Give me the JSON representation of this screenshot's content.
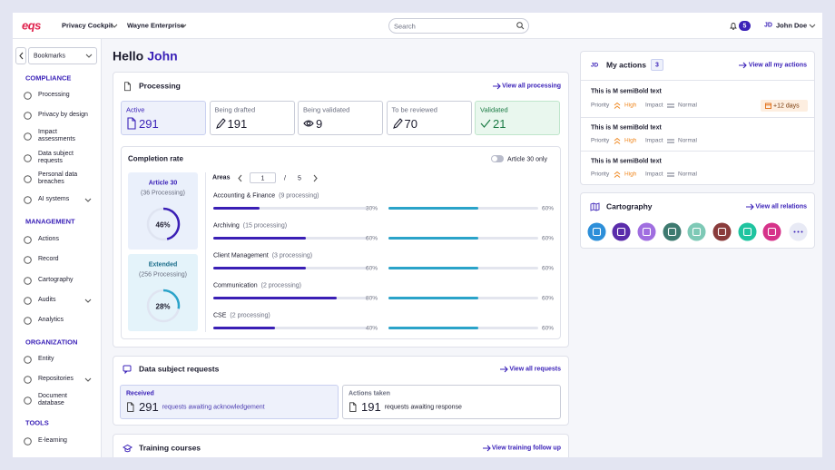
{
  "header": {
    "logo": "eqs",
    "nav": [
      "Privacy Cockpit",
      "Wayne Enterprise"
    ],
    "search": "Search",
    "notifications": 5,
    "user_initials": "JD",
    "user_name": "John Doe"
  },
  "sidebar": {
    "bookmarks": "Bookmarks",
    "sections": [
      {
        "title": "COMPLIANCE",
        "items": [
          "Processing",
          "Privacy by design",
          "Impact assessments",
          "Data subject requests",
          "Personal data breaches",
          "AI systems"
        ]
      },
      {
        "title": "MANAGEMENT",
        "items": [
          "Actions",
          "Record",
          "Cartography",
          "Audits",
          "Analytics"
        ]
      },
      {
        "title": "ORGANIZATION",
        "items": [
          "Entity",
          "Repositories",
          "Document database"
        ]
      },
      {
        "title": "TOOLS",
        "items": [
          "E-learning"
        ]
      }
    ]
  },
  "greeting": {
    "hello": "Hello",
    "name": "John"
  },
  "processing": {
    "title": "Processing",
    "link": "View all processing",
    "cards": [
      {
        "label": "Active",
        "count": 291
      },
      {
        "label": "Being drafted",
        "count": 191
      },
      {
        "label": "Being validated",
        "count": 9
      },
      {
        "label": "To be reviewed",
        "count": 70
      },
      {
        "label": "Validated",
        "count": 21
      }
    ]
  },
  "completion": {
    "title": "Completion rate",
    "toggle": "Article 30 only",
    "groups": [
      {
        "title": "Article 30",
        "subtitle": "(36 Processing)",
        "percent": {
          "value": 46,
          "label": "46%"
        }
      },
      {
        "title": "Extended",
        "subtitle": "(256 Processing)",
        "percent": {
          "value": 28,
          "label": "28%"
        }
      }
    ],
    "areas_label": "Areas",
    "page": 1,
    "page_sep": "/",
    "pages": 5,
    "areas": [
      {
        "name": "Accounting & Finance",
        "count": "(9 processing)",
        "a30": {
          "value": 30,
          "label": "30%"
        },
        "ext": {
          "value": 60,
          "label": "60%"
        }
      },
      {
        "name": "Archiving",
        "count": "(15 processing)",
        "a30": {
          "value": 60,
          "label": "60%"
        },
        "ext": {
          "value": 60,
          "label": "60%"
        }
      },
      {
        "name": "Client Management",
        "count": "(3 processing)",
        "a30": {
          "value": 60,
          "label": "60%"
        },
        "ext": {
          "value": 60,
          "label": "60%"
        }
      },
      {
        "name": "Communication",
        "count": "(2 processing)",
        "a30": {
          "value": 80,
          "label": "80%"
        },
        "ext": {
          "value": 60,
          "label": "60%"
        }
      },
      {
        "name": "CSE",
        "count": "(2 processing)",
        "a30": {
          "value": 40,
          "label": "40%"
        },
        "ext": {
          "value": 60,
          "label": "60%"
        }
      }
    ]
  },
  "dsr": {
    "title": "Data subject requests",
    "link": "View all requests",
    "cards": [
      {
        "label": "Received",
        "count": 291,
        "text": "requests awaiting acknowledgement"
      },
      {
        "label": "Actions taken",
        "count": 191,
        "text": "requests awaiting response"
      }
    ]
  },
  "training": {
    "title": "Training courses",
    "link": "View training follow up"
  },
  "actions": {
    "initials": "JD",
    "title": "My actions",
    "count": 3,
    "link": "View all my actions",
    "items": [
      {
        "title": "This is M semiBold text",
        "priority_label": "Priority",
        "priority": "High",
        "impact_label": "Impact",
        "impact": "Normal",
        "due": "+12 days"
      },
      {
        "title": "This is M semiBold text",
        "priority_label": "Priority",
        "priority": "High",
        "impact_label": "Impact",
        "impact": "Normal"
      },
      {
        "title": "This is M semiBold text",
        "priority_label": "Priority",
        "priority": "High",
        "impact_label": "Impact",
        "impact": "Normal"
      }
    ]
  },
  "cartography": {
    "title": "Cartography",
    "link": "View all relations"
  }
}
